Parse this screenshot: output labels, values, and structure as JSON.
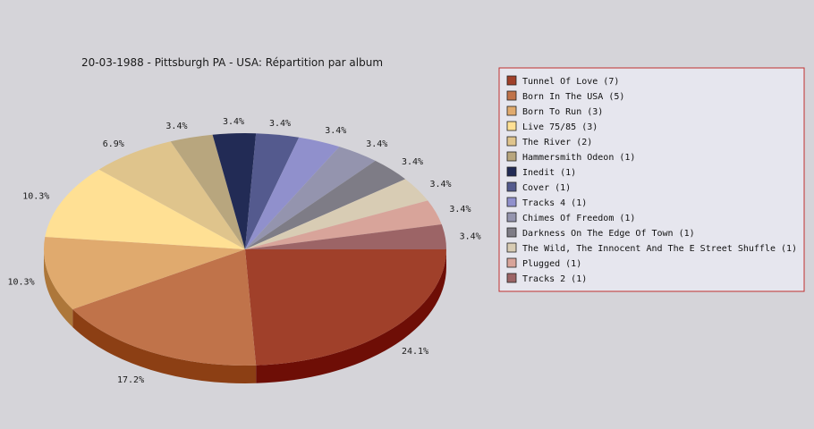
{
  "chart_data": {
    "type": "pie",
    "title": "20-03-1988 - Pittsburgh PA - USA:  Répartition par album",
    "slices": [
      {
        "label": "Tunnel Of Love (7)",
        "value": 7,
        "percent_label": "24.1%",
        "color": "#a0402a",
        "side_color": "#6e0e06"
      },
      {
        "label": "Born In The USA (5)",
        "value": 5,
        "percent_label": "17.2%",
        "color": "#c0734a",
        "side_color": "#8c3f14"
      },
      {
        "label": "Born To Run (3)",
        "value": 3,
        "percent_label": "10.3%",
        "color": "#e0aa6e",
        "side_color": "#ad773a"
      },
      {
        "label": "Live 75/85 (3)",
        "value": 3,
        "percent_label": "10.3%",
        "color": "#ffe094",
        "side_color": "#ccad60"
      },
      {
        "label": "The River (2)",
        "value": 2,
        "percent_label": "6.9%",
        "color": "#dfc48c",
        "side_color": "#ac9159"
      },
      {
        "label": "Hammersmith Odeon  (1)",
        "value": 1,
        "percent_label": "3.4%",
        "color": "#b8a67e",
        "side_color": "#85734b"
      },
      {
        "label": "Inedit (1)",
        "value": 1,
        "percent_label": "3.4%",
        "color": "#222b55",
        "side_color": "#101835"
      },
      {
        "label": "Cover (1)",
        "value": 1,
        "percent_label": "3.4%",
        "color": "#545a8e",
        "side_color": "#30365e"
      },
      {
        "label": "Tracks 4 (1)",
        "value": 1,
        "percent_label": "3.4%",
        "color": "#9090cc",
        "side_color": "#606099"
      },
      {
        "label": "Chimes Of Freedom (1)",
        "value": 1,
        "percent_label": "3.4%",
        "color": "#9494ae",
        "side_color": "#64647e"
      },
      {
        "label": "Darkness On The Edge Of Town (1)",
        "value": 1,
        "percent_label": "3.4%",
        "color": "#7e7c86",
        "side_color": "#4e4c56"
      },
      {
        "label": "The Wild, The Innocent And The E Street Shuffle (1)",
        "value": 1,
        "percent_label": "3.4%",
        "color": "#d8ccb4",
        "side_color": "#a89c84"
      },
      {
        "label": "Plugged (1)",
        "value": 1,
        "percent_label": "3.4%",
        "color": "#d8a49a",
        "side_color": "#a8746a"
      },
      {
        "label": "Tracks 2 (1)",
        "value": 1,
        "percent_label": "3.4%",
        "color": "#9c6466",
        "side_color": "#6c3436"
      }
    ],
    "legend_position": "right",
    "legend_border_color": "#c03030",
    "legend_background": "#e6e6ee",
    "background": "#d5d4d9"
  }
}
